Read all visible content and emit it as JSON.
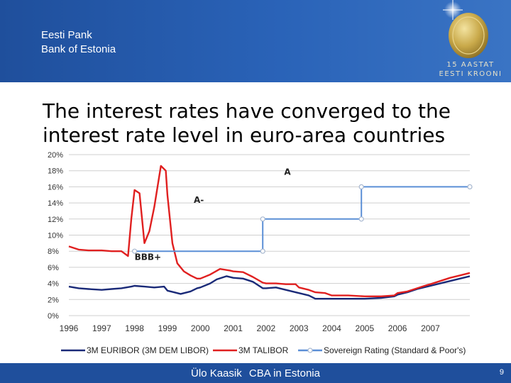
{
  "header": {
    "bank_name_et": "Eesti Pank",
    "bank_name_en": "Bank of Estonia",
    "anniversary_line1": "15 AASTAT",
    "anniversary_line2": "EESTI KROONI",
    "colors": {
      "background": "#1f4f9c",
      "coin": "#c9a94a"
    }
  },
  "slide": {
    "title": "The interest rates have converged to the interest rate level in euro-area countries"
  },
  "footer": {
    "author": "Ülo Kaasik",
    "subject": "CBA in Estonia",
    "page_number": "9"
  },
  "chart_data": {
    "type": "line",
    "title": "",
    "xlabel": "",
    "ylabel": "",
    "x_ticks": [
      "1996",
      "1997",
      "1998",
      "1999",
      "2000",
      "2001",
      "2002",
      "2003",
      "2004",
      "2005",
      "2006",
      "2007"
    ],
    "y_ticks": [
      "0%",
      "2%",
      "4%",
      "6%",
      "8%",
      "10%",
      "12%",
      "14%",
      "16%",
      "18%",
      "20%"
    ],
    "xlim": [
      1996,
      2008.2
    ],
    "ylim": [
      0,
      20
    ],
    "grid": true,
    "legend_position": "bottom",
    "series": [
      {
        "name": "3M EURIBOR (3M DEM LIBOR)",
        "color": "#1a2a78",
        "points": [
          [
            1996.0,
            3.6
          ],
          [
            1996.3,
            3.4
          ],
          [
            1996.6,
            3.3
          ],
          [
            1997.0,
            3.2
          ],
          [
            1997.3,
            3.3
          ],
          [
            1997.6,
            3.4
          ],
          [
            1997.9,
            3.6
          ],
          [
            1998.0,
            3.7
          ],
          [
            1998.3,
            3.6
          ],
          [
            1998.6,
            3.5
          ],
          [
            1998.9,
            3.6
          ],
          [
            1999.0,
            3.1
          ],
          [
            1999.2,
            2.9
          ],
          [
            1999.4,
            2.7
          ],
          [
            1999.7,
            3.0
          ],
          [
            1999.9,
            3.4
          ],
          [
            2000.0,
            3.5
          ],
          [
            2000.3,
            4.0
          ],
          [
            2000.5,
            4.5
          ],
          [
            2000.8,
            4.9
          ],
          [
            2001.0,
            4.7
          ],
          [
            2001.3,
            4.6
          ],
          [
            2001.6,
            4.2
          ],
          [
            2001.9,
            3.4
          ],
          [
            2002.0,
            3.4
          ],
          [
            2002.3,
            3.5
          ],
          [
            2002.6,
            3.2
          ],
          [
            2002.9,
            2.9
          ],
          [
            2003.0,
            2.8
          ],
          [
            2003.3,
            2.5
          ],
          [
            2003.5,
            2.1
          ],
          [
            2003.8,
            2.1
          ],
          [
            2004.0,
            2.1
          ],
          [
            2004.5,
            2.1
          ],
          [
            2005.0,
            2.1
          ],
          [
            2005.5,
            2.2
          ],
          [
            2005.9,
            2.4
          ],
          [
            2006.0,
            2.6
          ],
          [
            2006.3,
            2.9
          ],
          [
            2006.6,
            3.3
          ],
          [
            2006.9,
            3.6
          ],
          [
            2007.0,
            3.7
          ],
          [
            2007.3,
            4.0
          ],
          [
            2007.6,
            4.3
          ],
          [
            2007.9,
            4.6
          ],
          [
            2008.2,
            4.9
          ]
        ]
      },
      {
        "name": "3M TALIBOR",
        "color": "#e02020",
        "points": [
          [
            1996.0,
            8.6
          ],
          [
            1996.3,
            8.2
          ],
          [
            1996.6,
            8.1
          ],
          [
            1997.0,
            8.1
          ],
          [
            1997.3,
            8.0
          ],
          [
            1997.6,
            8.0
          ],
          [
            1997.8,
            7.4
          ],
          [
            1997.9,
            12.0
          ],
          [
            1998.0,
            15.6
          ],
          [
            1998.15,
            15.2
          ],
          [
            1998.3,
            9.0
          ],
          [
            1998.45,
            10.5
          ],
          [
            1998.6,
            13.5
          ],
          [
            1998.8,
            18.6
          ],
          [
            1998.95,
            18.0
          ],
          [
            1999.0,
            15.0
          ],
          [
            1999.15,
            9.0
          ],
          [
            1999.3,
            6.5
          ],
          [
            1999.5,
            5.5
          ],
          [
            1999.7,
            5.0
          ],
          [
            1999.9,
            4.6
          ],
          [
            2000.0,
            4.6
          ],
          [
            2000.3,
            5.1
          ],
          [
            2000.6,
            5.8
          ],
          [
            2000.9,
            5.6
          ],
          [
            2001.0,
            5.5
          ],
          [
            2001.3,
            5.4
          ],
          [
            2001.6,
            4.8
          ],
          [
            2001.9,
            4.1
          ],
          [
            2002.0,
            4.0
          ],
          [
            2002.3,
            4.0
          ],
          [
            2002.6,
            3.9
          ],
          [
            2002.9,
            3.9
          ],
          [
            2003.0,
            3.5
          ],
          [
            2003.3,
            3.2
          ],
          [
            2003.5,
            2.9
          ],
          [
            2003.8,
            2.8
          ],
          [
            2004.0,
            2.5
          ],
          [
            2004.5,
            2.5
          ],
          [
            2005.0,
            2.4
          ],
          [
            2005.5,
            2.4
          ],
          [
            2005.9,
            2.5
          ],
          [
            2006.0,
            2.8
          ],
          [
            2006.3,
            3.0
          ],
          [
            2006.6,
            3.4
          ],
          [
            2006.9,
            3.8
          ],
          [
            2007.0,
            3.9
          ],
          [
            2007.3,
            4.3
          ],
          [
            2007.6,
            4.7
          ],
          [
            2007.9,
            5.0
          ],
          [
            2008.2,
            5.3
          ]
        ]
      },
      {
        "name": "Sovereign Rating (Standard & Poor's)",
        "color": "#5b8fd6",
        "points": [
          [
            1998.0,
            8.0
          ],
          [
            2001.9,
            8.0
          ],
          [
            2001.9,
            12.0
          ],
          [
            2004.9,
            12.0
          ],
          [
            2004.9,
            16.0
          ],
          [
            2008.2,
            16.0
          ]
        ],
        "marker_points": [
          [
            1998.0,
            8.0
          ],
          [
            2001.9,
            8.0
          ],
          [
            2001.9,
            12.0
          ],
          [
            2004.9,
            12.0
          ],
          [
            2004.9,
            16.0
          ],
          [
            2008.2,
            16.0
          ]
        ]
      }
    ],
    "annotations": [
      {
        "text": "BBB+",
        "x": 1998.0,
        "y": 6.9
      },
      {
        "text": "A-",
        "x": 1999.8,
        "y": 14.0
      },
      {
        "text": "A",
        "x": 2002.55,
        "y": 17.5
      }
    ]
  }
}
